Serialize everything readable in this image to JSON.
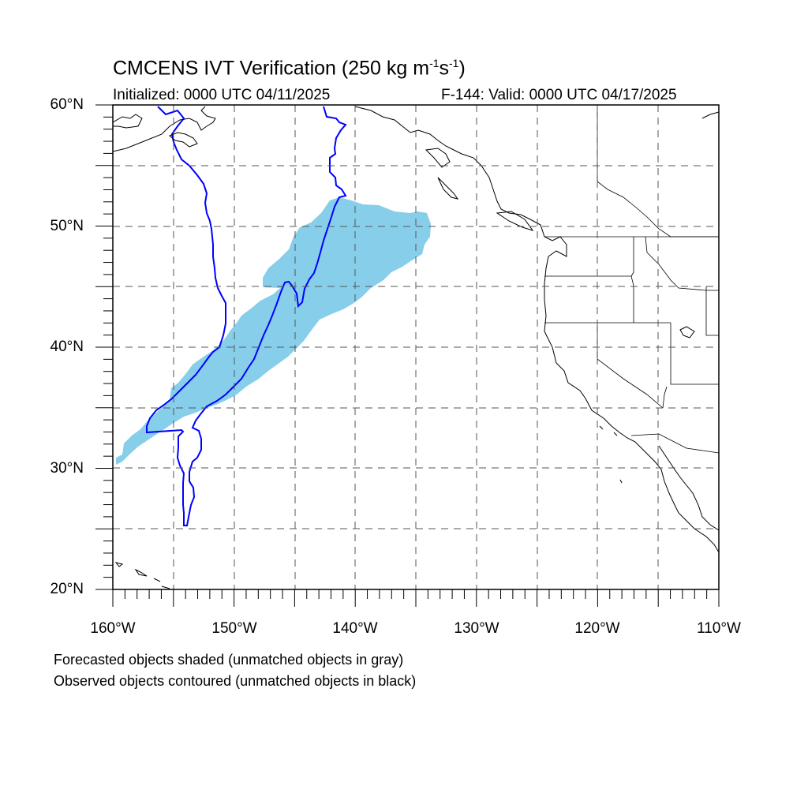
{
  "title": {
    "main": "CMCENS IVT Verification (250 kg m",
    "sup1": "-1",
    "mid": "s",
    "sup2": "-1",
    "end": ")"
  },
  "subtitle": {
    "left": "Initialized: 0000 UTC 04/11/2025",
    "right": "F-144: Valid: 0000 UTC 04/17/2025"
  },
  "lat_labels": [
    "60°N",
    "50°N",
    "40°N",
    "30°N",
    "20°N"
  ],
  "lon_labels": [
    "160°W",
    "150°W",
    "140°W",
    "130°W",
    "120°W",
    "110°W"
  ],
  "footer": {
    "line1": "Forecasted objects shaded (unmatched objects in gray)",
    "line2": "Observed objects contoured (unmatched objects in black)"
  },
  "colors": {
    "forecast_fill": "#87CEEB",
    "observed_contour": "#0000FF",
    "coastline": "#000000",
    "grid": "#555555"
  }
}
